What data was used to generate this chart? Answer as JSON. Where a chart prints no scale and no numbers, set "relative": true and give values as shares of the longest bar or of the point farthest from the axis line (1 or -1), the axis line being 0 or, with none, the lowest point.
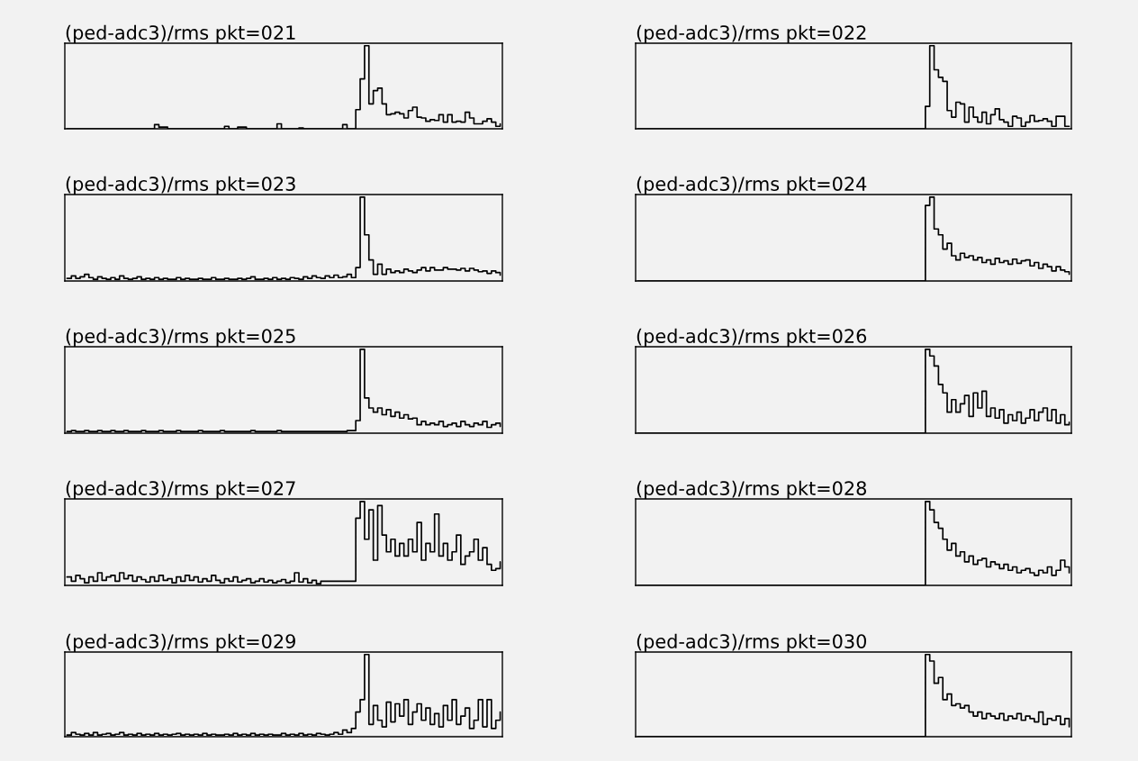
{
  "chart_data": [
    {
      "type": "step",
      "title": "(ped-adc3)/rms pkt=021",
      "relative": true,
      "color": "#000000",
      "categories": [
        null,
        null,
        null,
        null,
        null,
        null,
        null,
        null,
        null,
        null,
        null,
        null,
        null,
        null,
        null,
        null,
        null,
        null,
        null,
        null,
        null,
        null,
        null,
        null,
        null,
        null,
        null,
        null,
        null,
        null,
        null,
        null,
        null,
        null,
        null,
        null,
        null,
        null,
        null,
        null,
        null,
        null,
        null,
        null,
        null,
        null,
        null,
        null,
        null,
        null,
        null,
        null,
        null,
        null,
        null,
        null,
        null,
        null,
        null,
        null,
        null,
        null,
        null,
        null,
        null,
        null,
        null,
        null,
        null,
        null,
        null,
        null,
        null,
        null,
        null,
        null,
        null,
        null,
        null,
        null,
        null,
        null,
        null,
        null,
        null,
        null,
        null,
        null,
        null,
        null,
        null,
        null,
        null,
        null,
        null,
        null,
        null,
        null,
        null,
        null
      ],
      "values": [
        0,
        0,
        0,
        0,
        0,
        0,
        0,
        0,
        0,
        0,
        0,
        0,
        0,
        0,
        0,
        0,
        0,
        0,
        0,
        0,
        0.05,
        0.02,
        0.02,
        0,
        0,
        0,
        0,
        0,
        0,
        0,
        0,
        0,
        0,
        0,
        0,
        0,
        0.03,
        0,
        0,
        0.02,
        0.02,
        0,
        0,
        0,
        0,
        0,
        0,
        0,
        0.06,
        0,
        0,
        0,
        0,
        0.01,
        0,
        0,
        0,
        0,
        0,
        0,
        0,
        0,
        0,
        0.05,
        0,
        0,
        0.23,
        0.6,
        1.0,
        0.3,
        0.46,
        0.49,
        0.3,
        0.17,
        0.18,
        0.2,
        0.18,
        0.13,
        0.22,
        0.26,
        0.14,
        0.13,
        0.09,
        0.11,
        0.1,
        0.17,
        0.08,
        0.17,
        0.08,
        0.09,
        0.08,
        0.2,
        0.13,
        0.06,
        0.06,
        0.09,
        0.12,
        0.08,
        0.03,
        0.06
      ]
    },
    {
      "type": "step",
      "title": "(ped-adc3)/rms pkt=022",
      "relative": true,
      "color": "#000000",
      "categories": [
        null,
        null,
        null,
        null,
        null,
        null,
        null,
        null,
        null,
        null,
        null,
        null,
        null,
        null,
        null,
        null,
        null,
        null,
        null,
        null,
        null,
        null,
        null,
        null,
        null,
        null,
        null,
        null,
        null,
        null,
        null,
        null,
        null,
        null,
        null,
        null,
        null,
        null,
        null,
        null,
        null,
        null,
        null,
        null,
        null,
        null,
        null,
        null,
        null,
        null,
        null,
        null,
        null,
        null,
        null,
        null,
        null,
        null,
        null,
        null,
        null,
        null,
        null,
        null,
        null,
        null,
        null,
        null,
        null,
        null,
        null,
        null,
        null,
        null,
        null,
        null,
        null,
        null,
        null,
        null,
        null,
        null,
        null,
        null,
        null,
        null,
        null,
        null,
        null,
        null,
        null,
        null,
        null,
        null,
        null,
        null,
        null,
        null,
        null,
        null
      ],
      "values": [
        0,
        0,
        0,
        0,
        0,
        0,
        0,
        0,
        0,
        0,
        0,
        0,
        0,
        0,
        0,
        0,
        0,
        0,
        0,
        0,
        0,
        0,
        0,
        0,
        0,
        0,
        0,
        0,
        0,
        0,
        0,
        0,
        0,
        0,
        0,
        0,
        0,
        0,
        0,
        0,
        0,
        0,
        0,
        0,
        0,
        0,
        0,
        0,
        0,
        0,
        0,
        0,
        0,
        0,
        0,
        0,
        0,
        0,
        0,
        0,
        0,
        0,
        0,
        0,
        0,
        0,
        0.27,
        1.0,
        0.71,
        0.62,
        0.57,
        0.22,
        0.14,
        0.32,
        0.3,
        0.08,
        0.26,
        0.14,
        0.08,
        0.2,
        0.06,
        0.17,
        0.24,
        0.11,
        0.08,
        0.03,
        0.15,
        0.13,
        0.03,
        0.08,
        0.16,
        0.09,
        0.1,
        0.12,
        0.09,
        0.03,
        0.15,
        0.15,
        0.03,
        0.03
      ]
    },
    {
      "type": "step",
      "title": "(ped-adc3)/rms pkt=023",
      "relative": true,
      "color": "#000000",
      "categories": [
        null,
        null,
        null,
        null,
        null,
        null,
        null,
        null,
        null,
        null,
        null,
        null,
        null,
        null,
        null,
        null,
        null,
        null,
        null,
        null,
        null,
        null,
        null,
        null,
        null,
        null,
        null,
        null,
        null,
        null,
        null,
        null,
        null,
        null,
        null,
        null,
        null,
        null,
        null,
        null,
        null,
        null,
        null,
        null,
        null,
        null,
        null,
        null,
        null,
        null,
        null,
        null,
        null,
        null,
        null,
        null,
        null,
        null,
        null,
        null,
        null,
        null,
        null,
        null,
        null,
        null,
        null,
        null,
        null,
        null,
        null,
        null,
        null,
        null,
        null,
        null,
        null,
        null,
        null,
        null,
        null,
        null,
        null,
        null,
        null,
        null,
        null,
        null,
        null,
        null,
        null,
        null,
        null,
        null,
        null,
        null,
        null,
        null,
        null,
        null
      ],
      "values": [
        0.03,
        0.06,
        0.03,
        0.05,
        0.08,
        0.04,
        0.02,
        0.05,
        0.03,
        0.02,
        0.04,
        0.02,
        0.06,
        0.03,
        0.02,
        0.03,
        0.05,
        0.02,
        0.03,
        0.02,
        0.04,
        0.02,
        0.03,
        0.02,
        0.02,
        0.04,
        0.02,
        0.03,
        0.02,
        0.02,
        0.03,
        0.02,
        0.02,
        0.04,
        0.02,
        0.02,
        0.03,
        0.02,
        0.02,
        0.03,
        0.02,
        0.03,
        0.05,
        0.02,
        0.02,
        0.03,
        0.02,
        0.04,
        0.02,
        0.03,
        0.02,
        0.04,
        0.03,
        0.02,
        0.05,
        0.03,
        0.06,
        0.04,
        0.03,
        0.06,
        0.04,
        0.07,
        0.04,
        0.05,
        0.08,
        0.04,
        0.16,
        1.0,
        0.55,
        0.25,
        0.08,
        0.2,
        0.08,
        0.14,
        0.1,
        0.12,
        0.1,
        0.14,
        0.12,
        0.1,
        0.13,
        0.16,
        0.12,
        0.16,
        0.13,
        0.13,
        0.16,
        0.14,
        0.14,
        0.13,
        0.15,
        0.12,
        0.15,
        0.13,
        0.11,
        0.12,
        0.09,
        0.12,
        0.1,
        0.07
      ]
    },
    {
      "type": "step",
      "title": "(ped-adc3)/rms pkt=024",
      "relative": true,
      "color": "#000000",
      "categories": [
        null,
        null,
        null,
        null,
        null,
        null,
        null,
        null,
        null,
        null,
        null,
        null,
        null,
        null,
        null,
        null,
        null,
        null,
        null,
        null,
        null,
        null,
        null,
        null,
        null,
        null,
        null,
        null,
        null,
        null,
        null,
        null,
        null,
        null,
        null,
        null,
        null,
        null,
        null,
        null,
        null,
        null,
        null,
        null,
        null,
        null,
        null,
        null,
        null,
        null,
        null,
        null,
        null,
        null,
        null,
        null,
        null,
        null,
        null,
        null,
        null,
        null,
        null,
        null,
        null,
        null,
        null,
        null,
        null,
        null,
        null,
        null,
        null,
        null,
        null,
        null,
        null,
        null,
        null,
        null,
        null,
        null,
        null,
        null,
        null,
        null,
        null,
        null,
        null,
        null,
        null,
        null,
        null,
        null,
        null,
        null,
        null,
        null,
        null,
        null
      ],
      "values": [
        0,
        0,
        0,
        0,
        0,
        0,
        0,
        0,
        0,
        0,
        0,
        0,
        0,
        0,
        0,
        0,
        0,
        0,
        0,
        0,
        0,
        0,
        0,
        0,
        0,
        0,
        0,
        0,
        0,
        0,
        0,
        0,
        0,
        0,
        0,
        0,
        0,
        0,
        0,
        0,
        0,
        0,
        0,
        0,
        0,
        0,
        0,
        0,
        0,
        0,
        0,
        0,
        0,
        0,
        0,
        0,
        0,
        0,
        0,
        0,
        0,
        0,
        0,
        0,
        0,
        0,
        0.9,
        1.0,
        0.62,
        0.55,
        0.38,
        0.45,
        0.3,
        0.25,
        0.33,
        0.28,
        0.3,
        0.25,
        0.28,
        0.22,
        0.25,
        0.2,
        0.27,
        0.22,
        0.24,
        0.2,
        0.26,
        0.21,
        0.24,
        0.25,
        0.18,
        0.22,
        0.15,
        0.2,
        0.17,
        0.12,
        0.17,
        0.13,
        0.11,
        0.08
      ]
    },
    {
      "type": "step",
      "title": "(ped-adc3)/rms pkt=025",
      "relative": true,
      "color": "#000000",
      "categories": [
        null,
        null,
        null,
        null,
        null,
        null,
        null,
        null,
        null,
        null,
        null,
        null,
        null,
        null,
        null,
        null,
        null,
        null,
        null,
        null,
        null,
        null,
        null,
        null,
        null,
        null,
        null,
        null,
        null,
        null,
        null,
        null,
        null,
        null,
        null,
        null,
        null,
        null,
        null,
        null,
        null,
        null,
        null,
        null,
        null,
        null,
        null,
        null,
        null,
        null,
        null,
        null,
        null,
        null,
        null,
        null,
        null,
        null,
        null,
        null,
        null,
        null,
        null,
        null,
        null,
        null,
        null,
        null,
        null,
        null,
        null,
        null,
        null,
        null,
        null,
        null,
        null,
        null,
        null,
        null,
        null,
        null,
        null,
        null,
        null,
        null,
        null,
        null,
        null,
        null,
        null,
        null,
        null,
        null,
        null,
        null,
        null,
        null,
        null,
        null
      ],
      "values": [
        0.02,
        0.03,
        0.02,
        0.02,
        0.03,
        0.02,
        0.02,
        0.03,
        0.02,
        0.02,
        0.03,
        0.02,
        0.02,
        0.03,
        0.02,
        0.02,
        0.02,
        0.03,
        0.02,
        0.02,
        0.02,
        0.03,
        0.02,
        0.02,
        0.02,
        0.03,
        0.02,
        0.02,
        0.02,
        0.02,
        0.03,
        0.02,
        0.02,
        0.02,
        0.02,
        0.03,
        0.02,
        0.02,
        0.02,
        0.02,
        0.02,
        0.02,
        0.03,
        0.02,
        0.02,
        0.02,
        0.02,
        0.02,
        0.03,
        0.02,
        0.02,
        0.02,
        0.02,
        0.02,
        0.02,
        0.02,
        0.02,
        0.02,
        0.02,
        0.02,
        0.02,
        0.02,
        0.02,
        0.02,
        0.03,
        0.03,
        0.15,
        1.0,
        0.42,
        0.3,
        0.25,
        0.3,
        0.22,
        0.28,
        0.2,
        0.25,
        0.18,
        0.22,
        0.17,
        0.18,
        0.1,
        0.14,
        0.1,
        0.12,
        0.1,
        0.14,
        0.08,
        0.1,
        0.12,
        0.08,
        0.14,
        0.1,
        0.08,
        0.12,
        0.1,
        0.14,
        0.07,
        0.1,
        0.12,
        0.08
      ]
    },
    {
      "type": "step",
      "title": "(ped-adc3)/rms pkt=026",
      "relative": true,
      "color": "#000000",
      "categories": [
        null,
        null,
        null,
        null,
        null,
        null,
        null,
        null,
        null,
        null,
        null,
        null,
        null,
        null,
        null,
        null,
        null,
        null,
        null,
        null,
        null,
        null,
        null,
        null,
        null,
        null,
        null,
        null,
        null,
        null,
        null,
        null,
        null,
        null,
        null,
        null,
        null,
        null,
        null,
        null,
        null,
        null,
        null,
        null,
        null,
        null,
        null,
        null,
        null,
        null,
        null,
        null,
        null,
        null,
        null,
        null,
        null,
        null,
        null,
        null,
        null,
        null,
        null,
        null,
        null,
        null,
        null,
        null,
        null,
        null,
        null,
        null,
        null,
        null,
        null,
        null,
        null,
        null,
        null,
        null,
        null,
        null,
        null,
        null,
        null,
        null,
        null,
        null,
        null,
        null,
        null,
        null,
        null,
        null,
        null,
        null,
        null,
        null,
        null,
        null
      ],
      "values": [
        0,
        0,
        0,
        0,
        0,
        0,
        0,
        0,
        0,
        0,
        0,
        0,
        0,
        0,
        0,
        0,
        0,
        0,
        0,
        0,
        0,
        0,
        0,
        0,
        0,
        0,
        0,
        0,
        0,
        0,
        0,
        0,
        0,
        0,
        0,
        0,
        0,
        0,
        0,
        0,
        0,
        0,
        0,
        0,
        0,
        0,
        0,
        0,
        0,
        0,
        0,
        0,
        0,
        0,
        0,
        0,
        0,
        0,
        0,
        0,
        0,
        0,
        0,
        0,
        0,
        0,
        1.0,
        0.92,
        0.8,
        0.58,
        0.48,
        0.25,
        0.4,
        0.25,
        0.35,
        0.45,
        0.2,
        0.48,
        0.3,
        0.5,
        0.2,
        0.3,
        0.18,
        0.28,
        0.12,
        0.22,
        0.15,
        0.25,
        0.12,
        0.18,
        0.28,
        0.15,
        0.25,
        0.3,
        0.15,
        0.28,
        0.12,
        0.22,
        0.1,
        0.13
      ]
    },
    {
      "type": "step",
      "title": "(ped-adc3)/rms pkt=027",
      "relative": true,
      "color": "#000000",
      "categories": [
        null,
        null,
        null,
        null,
        null,
        null,
        null,
        null,
        null,
        null,
        null,
        null,
        null,
        null,
        null,
        null,
        null,
        null,
        null,
        null,
        null,
        null,
        null,
        null,
        null,
        null,
        null,
        null,
        null,
        null,
        null,
        null,
        null,
        null,
        null,
        null,
        null,
        null,
        null,
        null,
        null,
        null,
        null,
        null,
        null,
        null,
        null,
        null,
        null,
        null,
        null,
        null,
        null,
        null,
        null,
        null,
        null,
        null,
        null,
        null,
        null,
        null,
        null,
        null,
        null,
        null,
        null,
        null,
        null,
        null,
        null,
        null,
        null,
        null,
        null,
        null,
        null,
        null,
        null,
        null,
        null,
        null,
        null,
        null,
        null,
        null,
        null,
        null,
        null,
        null,
        null,
        null,
        null,
        null,
        null,
        null,
        null,
        null,
        null,
        null
      ],
      "values": [
        0.1,
        0.05,
        0.12,
        0.08,
        0.03,
        0.1,
        0.05,
        0.15,
        0.06,
        0.1,
        0.12,
        0.05,
        0.15,
        0.08,
        0.12,
        0.05,
        0.1,
        0.07,
        0.04,
        0.1,
        0.05,
        0.12,
        0.06,
        0.08,
        0.03,
        0.1,
        0.05,
        0.12,
        0.06,
        0.1,
        0.04,
        0.08,
        0.05,
        0.12,
        0.06,
        0.03,
        0.08,
        0.05,
        0.1,
        0.04,
        0.06,
        0.08,
        0.03,
        0.05,
        0.08,
        0.04,
        0.06,
        0.03,
        0.05,
        0.07,
        0.03,
        0.05,
        0.15,
        0.04,
        0.08,
        0.03,
        0.06,
        0.02,
        0.05,
        0.05,
        0.05,
        0.05,
        0.05,
        0.05,
        0.05,
        0.05,
        0.8,
        1.0,
        0.55,
        0.9,
        0.3,
        0.95,
        0.6,
        0.4,
        0.55,
        0.35,
        0.5,
        0.35,
        0.55,
        0.4,
        0.75,
        0.3,
        0.5,
        0.4,
        0.85,
        0.35,
        0.5,
        0.3,
        0.4,
        0.6,
        0.25,
        0.35,
        0.4,
        0.55,
        0.3,
        0.45,
        0.25,
        0.18,
        0.2,
        0.28
      ]
    },
    {
      "type": "step",
      "title": "(ped-adc3)/rms pkt=028",
      "relative": true,
      "color": "#000000",
      "categories": [
        null,
        null,
        null,
        null,
        null,
        null,
        null,
        null,
        null,
        null,
        null,
        null,
        null,
        null,
        null,
        null,
        null,
        null,
        null,
        null,
        null,
        null,
        null,
        null,
        null,
        null,
        null,
        null,
        null,
        null,
        null,
        null,
        null,
        null,
        null,
        null,
        null,
        null,
        null,
        null,
        null,
        null,
        null,
        null,
        null,
        null,
        null,
        null,
        null,
        null,
        null,
        null,
        null,
        null,
        null,
        null,
        null,
        null,
        null,
        null,
        null,
        null,
        null,
        null,
        null,
        null,
        null,
        null,
        null,
        null,
        null,
        null,
        null,
        null,
        null,
        null,
        null,
        null,
        null,
        null,
        null,
        null,
        null,
        null,
        null,
        null,
        null,
        null,
        null,
        null,
        null,
        null,
        null,
        null,
        null,
        null,
        null,
        null,
        null,
        null
      ],
      "values": [
        0,
        0,
        0,
        0,
        0,
        0,
        0,
        0,
        0,
        0,
        0,
        0,
        0,
        0,
        0,
        0,
        0,
        0,
        0,
        0,
        0,
        0,
        0,
        0,
        0,
        0,
        0,
        0,
        0,
        0,
        0,
        0,
        0,
        0,
        0,
        0,
        0,
        0,
        0,
        0,
        0,
        0,
        0,
        0,
        0,
        0,
        0,
        0,
        0,
        0,
        0,
        0,
        0,
        0,
        0,
        0,
        0,
        0,
        0,
        0,
        0,
        0,
        0,
        0,
        0,
        0,
        1.0,
        0.9,
        0.75,
        0.68,
        0.55,
        0.42,
        0.5,
        0.35,
        0.4,
        0.28,
        0.35,
        0.25,
        0.3,
        0.32,
        0.22,
        0.28,
        0.25,
        0.2,
        0.25,
        0.18,
        0.22,
        0.15,
        0.18,
        0.2,
        0.15,
        0.12,
        0.18,
        0.15,
        0.22,
        0.12,
        0.18,
        0.3,
        0.22,
        0.15
      ]
    },
    {
      "type": "step",
      "title": "(ped-adc3)/rms pkt=029",
      "relative": true,
      "color": "#000000",
      "categories": [
        null,
        null,
        null,
        null,
        null,
        null,
        null,
        null,
        null,
        null,
        null,
        null,
        null,
        null,
        null,
        null,
        null,
        null,
        null,
        null,
        null,
        null,
        null,
        null,
        null,
        null,
        null,
        null,
        null,
        null,
        null,
        null,
        null,
        null,
        null,
        null,
        null,
        null,
        null,
        null,
        null,
        null,
        null,
        null,
        null,
        null,
        null,
        null,
        null,
        null,
        null,
        null,
        null,
        null,
        null,
        null,
        null,
        null,
        null,
        null,
        null,
        null,
        null,
        null,
        null,
        null,
        null,
        null,
        null,
        null,
        null,
        null,
        null,
        null,
        null,
        null,
        null,
        null,
        null,
        null,
        null,
        null,
        null,
        null,
        null,
        null,
        null,
        null,
        null,
        null,
        null,
        null,
        null,
        null,
        null,
        null,
        null,
        null,
        null,
        null
      ],
      "values": [
        0.02,
        0.05,
        0.03,
        0.02,
        0.04,
        0.02,
        0.05,
        0.02,
        0.03,
        0.04,
        0.02,
        0.03,
        0.05,
        0.02,
        0.03,
        0.02,
        0.04,
        0.02,
        0.03,
        0.02,
        0.04,
        0.02,
        0.03,
        0.02,
        0.03,
        0.04,
        0.02,
        0.03,
        0.02,
        0.03,
        0.02,
        0.04,
        0.02,
        0.03,
        0.02,
        0.02,
        0.03,
        0.02,
        0.04,
        0.02,
        0.03,
        0.02,
        0.04,
        0.02,
        0.03,
        0.02,
        0.03,
        0.02,
        0.02,
        0.04,
        0.02,
        0.03,
        0.02,
        0.04,
        0.02,
        0.03,
        0.02,
        0.04,
        0.03,
        0.02,
        0.03,
        0.05,
        0.03,
        0.08,
        0.05,
        0.1,
        0.3,
        0.45,
        1.0,
        0.15,
        0.38,
        0.2,
        0.12,
        0.42,
        0.18,
        0.4,
        0.25,
        0.45,
        0.15,
        0.3,
        0.4,
        0.2,
        0.35,
        0.15,
        0.28,
        0.12,
        0.38,
        0.2,
        0.45,
        0.15,
        0.25,
        0.35,
        0.1,
        0.2,
        0.45,
        0.12,
        0.45,
        0.1,
        0.2,
        0.3
      ]
    },
    {
      "type": "step",
      "title": "(ped-adc3)/rms pkt=030",
      "relative": true,
      "color": "#000000",
      "categories": [
        null,
        null,
        null,
        null,
        null,
        null,
        null,
        null,
        null,
        null,
        null,
        null,
        null,
        null,
        null,
        null,
        null,
        null,
        null,
        null,
        null,
        null,
        null,
        null,
        null,
        null,
        null,
        null,
        null,
        null,
        null,
        null,
        null,
        null,
        null,
        null,
        null,
        null,
        null,
        null,
        null,
        null,
        null,
        null,
        null,
        null,
        null,
        null,
        null,
        null,
        null,
        null,
        null,
        null,
        null,
        null,
        null,
        null,
        null,
        null,
        null,
        null,
        null,
        null,
        null,
        null,
        null,
        null,
        null,
        null,
        null,
        null,
        null,
        null,
        null,
        null,
        null,
        null,
        null,
        null,
        null,
        null,
        null,
        null,
        null,
        null,
        null,
        null,
        null,
        null,
        null,
        null,
        null,
        null,
        null,
        null,
        null,
        null,
        null,
        null
      ],
      "values": [
        0,
        0,
        0,
        0,
        0,
        0,
        0,
        0,
        0,
        0,
        0,
        0,
        0,
        0,
        0,
        0,
        0,
        0,
        0,
        0,
        0,
        0,
        0,
        0,
        0,
        0,
        0,
        0,
        0,
        0,
        0,
        0,
        0,
        0,
        0,
        0,
        0,
        0,
        0,
        0,
        0,
        0,
        0,
        0,
        0,
        0,
        0,
        0,
        0,
        0,
        0,
        0,
        0,
        0,
        0,
        0,
        0,
        0,
        0,
        0,
        0,
        0,
        0,
        0,
        0,
        0,
        1.0,
        0.92,
        0.65,
        0.72,
        0.45,
        0.52,
        0.38,
        0.4,
        0.35,
        0.38,
        0.3,
        0.25,
        0.3,
        0.22,
        0.28,
        0.25,
        0.22,
        0.28,
        0.2,
        0.25,
        0.22,
        0.28,
        0.2,
        0.25,
        0.22,
        0.18,
        0.3,
        0.15,
        0.22,
        0.2,
        0.25,
        0.15,
        0.22,
        0.12
      ]
    }
  ]
}
